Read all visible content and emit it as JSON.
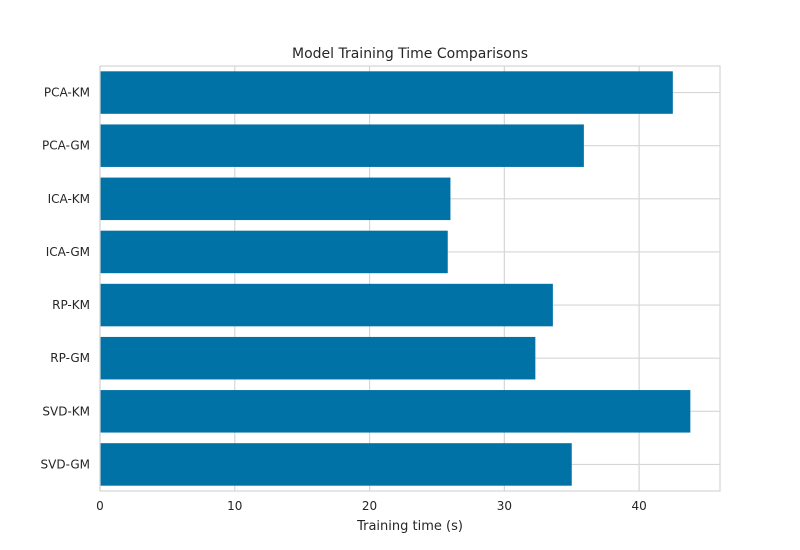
{
  "chart_data": {
    "type": "bar",
    "orientation": "horizontal",
    "title": "Model Training Time Comparisons",
    "xlabel": "Training time (s)",
    "ylabel": "",
    "categories": [
      "PCA-KM",
      "PCA-GM",
      "ICA-KM",
      "ICA-GM",
      "RP-KM",
      "RP-GM",
      "SVD-KM",
      "SVD-GM"
    ],
    "values": [
      42.5,
      35.9,
      26.0,
      25.8,
      33.6,
      32.3,
      43.8,
      35.0
    ],
    "xlim": [
      0,
      46
    ],
    "xticks": [
      0,
      10,
      20,
      30,
      40
    ],
    "grid": true,
    "colors": {
      "bar": "#0072a6",
      "grid": "#d6d6d6",
      "spine": "#d6d6d6",
      "text": "#262626"
    }
  }
}
